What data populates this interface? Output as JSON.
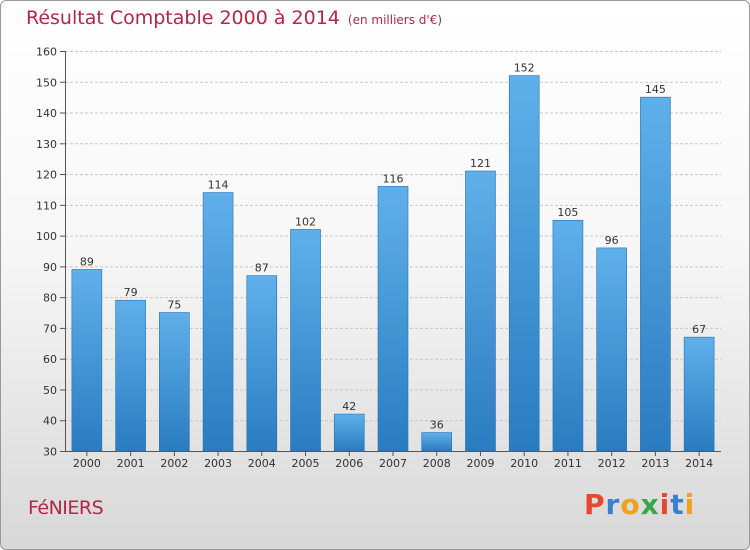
{
  "title": "Résultat Comptable 2000 à 2014",
  "unit": "(en milliers d'€)",
  "town": "FéNIERS",
  "brand": {
    "letters": [
      "P",
      "r",
      "o",
      "x",
      "i",
      "t",
      "i"
    ],
    "colors": [
      "#e8462e",
      "#3a7fd0",
      "#f0a01a",
      "#3aa64a",
      "#e8462e",
      "#3a7fd0",
      "#f0a01a"
    ]
  },
  "colors": {
    "title": "#b42746",
    "bar_top": "#5fb0ea",
    "bar_bottom": "#2a7cc0",
    "bar_edge": "#2672b0"
  },
  "chart_data": {
    "type": "bar",
    "title": "Résultat Comptable 2000 à 2014",
    "xlabel": "",
    "ylabel": "",
    "categories": [
      "2000",
      "2001",
      "2002",
      "2003",
      "2004",
      "2005",
      "2006",
      "2007",
      "2008",
      "2009",
      "2010",
      "2011",
      "2012",
      "2013",
      "2014"
    ],
    "values": [
      89,
      79,
      75,
      114,
      87,
      102,
      42,
      116,
      36,
      121,
      152,
      105,
      96,
      145,
      67
    ],
    "ylim": [
      30,
      160
    ],
    "yticks": [
      30,
      40,
      50,
      60,
      70,
      80,
      90,
      100,
      110,
      120,
      130,
      140,
      150,
      160
    ],
    "grid": true
  }
}
